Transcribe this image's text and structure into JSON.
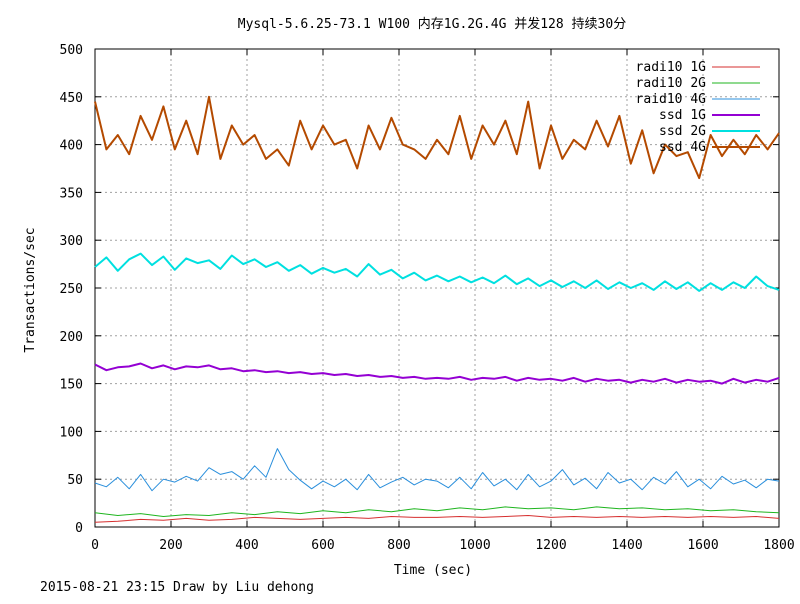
{
  "chart_data": {
    "type": "line",
    "title": "Mysql-5.6.25-73.1 W100 内存1G.2G.4G 并发128 持续30分",
    "xlabel": "Time (sec)",
    "ylabel": "Transactions/sec",
    "xlim": [
      0,
      1800
    ],
    "ylim": [
      0,
      500
    ],
    "xticks": [
      0,
      200,
      400,
      600,
      800,
      1000,
      1200,
      1400,
      1600,
      1800
    ],
    "yticks": [
      0,
      50,
      100,
      150,
      200,
      250,
      300,
      350,
      400,
      450,
      500
    ],
    "grid": true,
    "legend_position": "top-right",
    "series": [
      {
        "name": "radi10 1G",
        "color": "#d62f2f",
        "width": 1,
        "x": [
          0,
          60,
          120,
          180,
          240,
          300,
          360,
          420,
          480,
          540,
          600,
          660,
          720,
          780,
          840,
          900,
          960,
          1020,
          1080,
          1140,
          1200,
          1260,
          1320,
          1380,
          1440,
          1500,
          1560,
          1620,
          1680,
          1740,
          1800
        ],
        "values": [
          5,
          6,
          8,
          7,
          9,
          7,
          8,
          10,
          9,
          8,
          9,
          10,
          9,
          11,
          10,
          10,
          11,
          10,
          11,
          12,
          10,
          11,
          10,
          11,
          10,
          11,
          10,
          11,
          10,
          11,
          9
        ]
      },
      {
        "name": "radi10 2G",
        "color": "#1fb51f",
        "width": 1,
        "x": [
          0,
          60,
          120,
          180,
          240,
          300,
          360,
          420,
          480,
          540,
          600,
          660,
          720,
          780,
          840,
          900,
          960,
          1020,
          1080,
          1140,
          1200,
          1260,
          1320,
          1380,
          1440,
          1500,
          1560,
          1620,
          1680,
          1740,
          1800
        ],
        "values": [
          15,
          12,
          14,
          11,
          13,
          12,
          15,
          13,
          16,
          14,
          17,
          15,
          18,
          16,
          19,
          17,
          20,
          18,
          21,
          19,
          20,
          18,
          21,
          19,
          20,
          18,
          19,
          17,
          18,
          16,
          15
        ]
      },
      {
        "name": "raid10 4G",
        "color": "#2a8fdc",
        "width": 1,
        "x": [
          0,
          30,
          60,
          90,
          120,
          150,
          180,
          210,
          240,
          270,
          300,
          330,
          360,
          390,
          420,
          450,
          480,
          510,
          540,
          570,
          600,
          630,
          660,
          690,
          720,
          750,
          780,
          810,
          840,
          870,
          900,
          930,
          960,
          990,
          1020,
          1050,
          1080,
          1110,
          1140,
          1170,
          1200,
          1230,
          1260,
          1290,
          1320,
          1350,
          1380,
          1410,
          1440,
          1470,
          1500,
          1530,
          1560,
          1590,
          1620,
          1650,
          1680,
          1710,
          1740,
          1770,
          1800
        ],
        "values": [
          46,
          42,
          52,
          40,
          55,
          38,
          50,
          47,
          53,
          48,
          62,
          55,
          58,
          50,
          64,
          52,
          82,
          60,
          49,
          40,
          48,
          42,
          50,
          39,
          55,
          41,
          47,
          52,
          44,
          50,
          48,
          41,
          52,
          40,
          57,
          43,
          50,
          39,
          55,
          42,
          48,
          60,
          44,
          51,
          40,
          57,
          46,
          50,
          39,
          52,
          45,
          58,
          42,
          50,
          40,
          53,
          45,
          49,
          41,
          50,
          48
        ]
      },
      {
        "name": "ssd 1G",
        "color": "#9400d3",
        "width": 2,
        "x": [
          0,
          30,
          60,
          90,
          120,
          150,
          180,
          210,
          240,
          270,
          300,
          330,
          360,
          390,
          420,
          450,
          480,
          510,
          540,
          570,
          600,
          630,
          660,
          690,
          720,
          750,
          780,
          810,
          840,
          870,
          900,
          930,
          960,
          990,
          1020,
          1050,
          1080,
          1110,
          1140,
          1170,
          1200,
          1230,
          1260,
          1290,
          1320,
          1350,
          1380,
          1410,
          1440,
          1470,
          1500,
          1530,
          1560,
          1590,
          1620,
          1650,
          1680,
          1710,
          1740,
          1770,
          1800
        ],
        "values": [
          170,
          164,
          167,
          168,
          171,
          166,
          169,
          165,
          168,
          167,
          169,
          165,
          166,
          163,
          164,
          162,
          163,
          161,
          162,
          160,
          161,
          159,
          160,
          158,
          159,
          157,
          158,
          156,
          157,
          155,
          156,
          155,
          157,
          154,
          156,
          155,
          157,
          153,
          156,
          154,
          155,
          153,
          156,
          152,
          155,
          153,
          154,
          151,
          154,
          152,
          155,
          151,
          154,
          152,
          153,
          150,
          155,
          151,
          154,
          152,
          156
        ]
      },
      {
        "name": "ssd 2G",
        "color": "#00e0e0",
        "width": 2,
        "x": [
          0,
          30,
          60,
          90,
          120,
          150,
          180,
          210,
          240,
          270,
          300,
          330,
          360,
          390,
          420,
          450,
          480,
          510,
          540,
          570,
          600,
          630,
          660,
          690,
          720,
          750,
          780,
          810,
          840,
          870,
          900,
          930,
          960,
          990,
          1020,
          1050,
          1080,
          1110,
          1140,
          1170,
          1200,
          1230,
          1260,
          1290,
          1320,
          1350,
          1380,
          1410,
          1440,
          1470,
          1500,
          1530,
          1560,
          1590,
          1620,
          1650,
          1680,
          1710,
          1740,
          1770,
          1800
        ],
        "values": [
          272,
          282,
          268,
          280,
          286,
          274,
          283,
          269,
          281,
          276,
          279,
          270,
          284,
          275,
          280,
          272,
          277,
          268,
          274,
          265,
          271,
          266,
          270,
          262,
          275,
          264,
          269,
          260,
          266,
          258,
          263,
          257,
          262,
          256,
          261,
          255,
          263,
          254,
          260,
          252,
          258,
          251,
          257,
          250,
          258,
          249,
          256,
          250,
          255,
          248,
          257,
          249,
          256,
          247,
          255,
          248,
          256,
          250,
          262,
          252,
          248
        ]
      },
      {
        "name": "ssd 4G",
        "color": "#b44a00",
        "width": 2,
        "x": [
          0,
          30,
          60,
          90,
          120,
          150,
          180,
          210,
          240,
          270,
          300,
          330,
          360,
          390,
          420,
          450,
          480,
          510,
          540,
          570,
          600,
          630,
          660,
          690,
          720,
          750,
          780,
          810,
          840,
          870,
          900,
          930,
          960,
          990,
          1020,
          1050,
          1080,
          1110,
          1140,
          1170,
          1200,
          1230,
          1260,
          1290,
          1320,
          1350,
          1380,
          1410,
          1440,
          1470,
          1500,
          1530,
          1560,
          1590,
          1620,
          1650,
          1680,
          1710,
          1740,
          1770,
          1800
        ],
        "values": [
          445,
          395,
          410,
          390,
          430,
          405,
          440,
          395,
          425,
          390,
          450,
          385,
          420,
          400,
          410,
          385,
          395,
          378,
          425,
          395,
          420,
          400,
          405,
          375,
          420,
          395,
          428,
          400,
          395,
          385,
          405,
          390,
          430,
          385,
          420,
          400,
          425,
          390,
          445,
          375,
          420,
          385,
          405,
          395,
          425,
          398,
          430,
          380,
          415,
          370,
          400,
          388,
          392,
          365,
          410,
          388,
          405,
          390,
          410,
          395,
          412
        ]
      }
    ]
  },
  "footer": {
    "text": "2015-08-21 23:15 Draw by Liu dehong"
  }
}
